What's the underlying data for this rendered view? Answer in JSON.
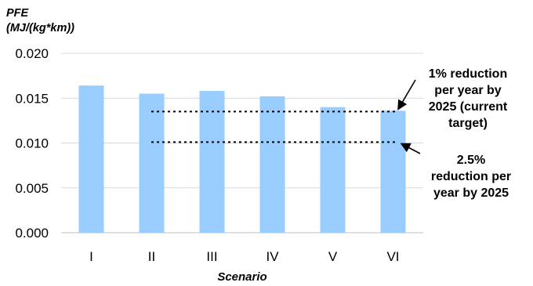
{
  "chart_data": {
    "type": "bar",
    "ylabel_line1": "PFE",
    "ylabel_line2": "(MJ/(kg*km))",
    "xlabel": "Scenario",
    "categories": [
      "I",
      "II",
      "III",
      "IV",
      "V",
      "VI"
    ],
    "values": [
      0.0164,
      0.0155,
      0.0158,
      0.0152,
      0.014,
      0.0136
    ],
    "ylim": [
      0,
      0.02
    ],
    "yticks": [
      0.0,
      0.005,
      0.01,
      0.015,
      0.02
    ],
    "ytick_labels": [
      "0.000",
      "0.005",
      "0.010",
      "0.015",
      "0.020"
    ],
    "grid": true,
    "bar_color": "#99ccff",
    "reference_lines": [
      {
        "value": 0.0135,
        "style": "dotted",
        "label": "1% reduction per year by 2025 (current target)"
      },
      {
        "value": 0.0101,
        "style": "dotted",
        "label": "2.5% reduction per year by 2025"
      }
    ],
    "annotations": [
      {
        "lines": [
          "1% reduction",
          "per year by",
          "2025 (current",
          "target)"
        ]
      },
      {
        "lines": [
          "2.5%",
          "reduction per",
          "year by 2025"
        ]
      }
    ]
  }
}
